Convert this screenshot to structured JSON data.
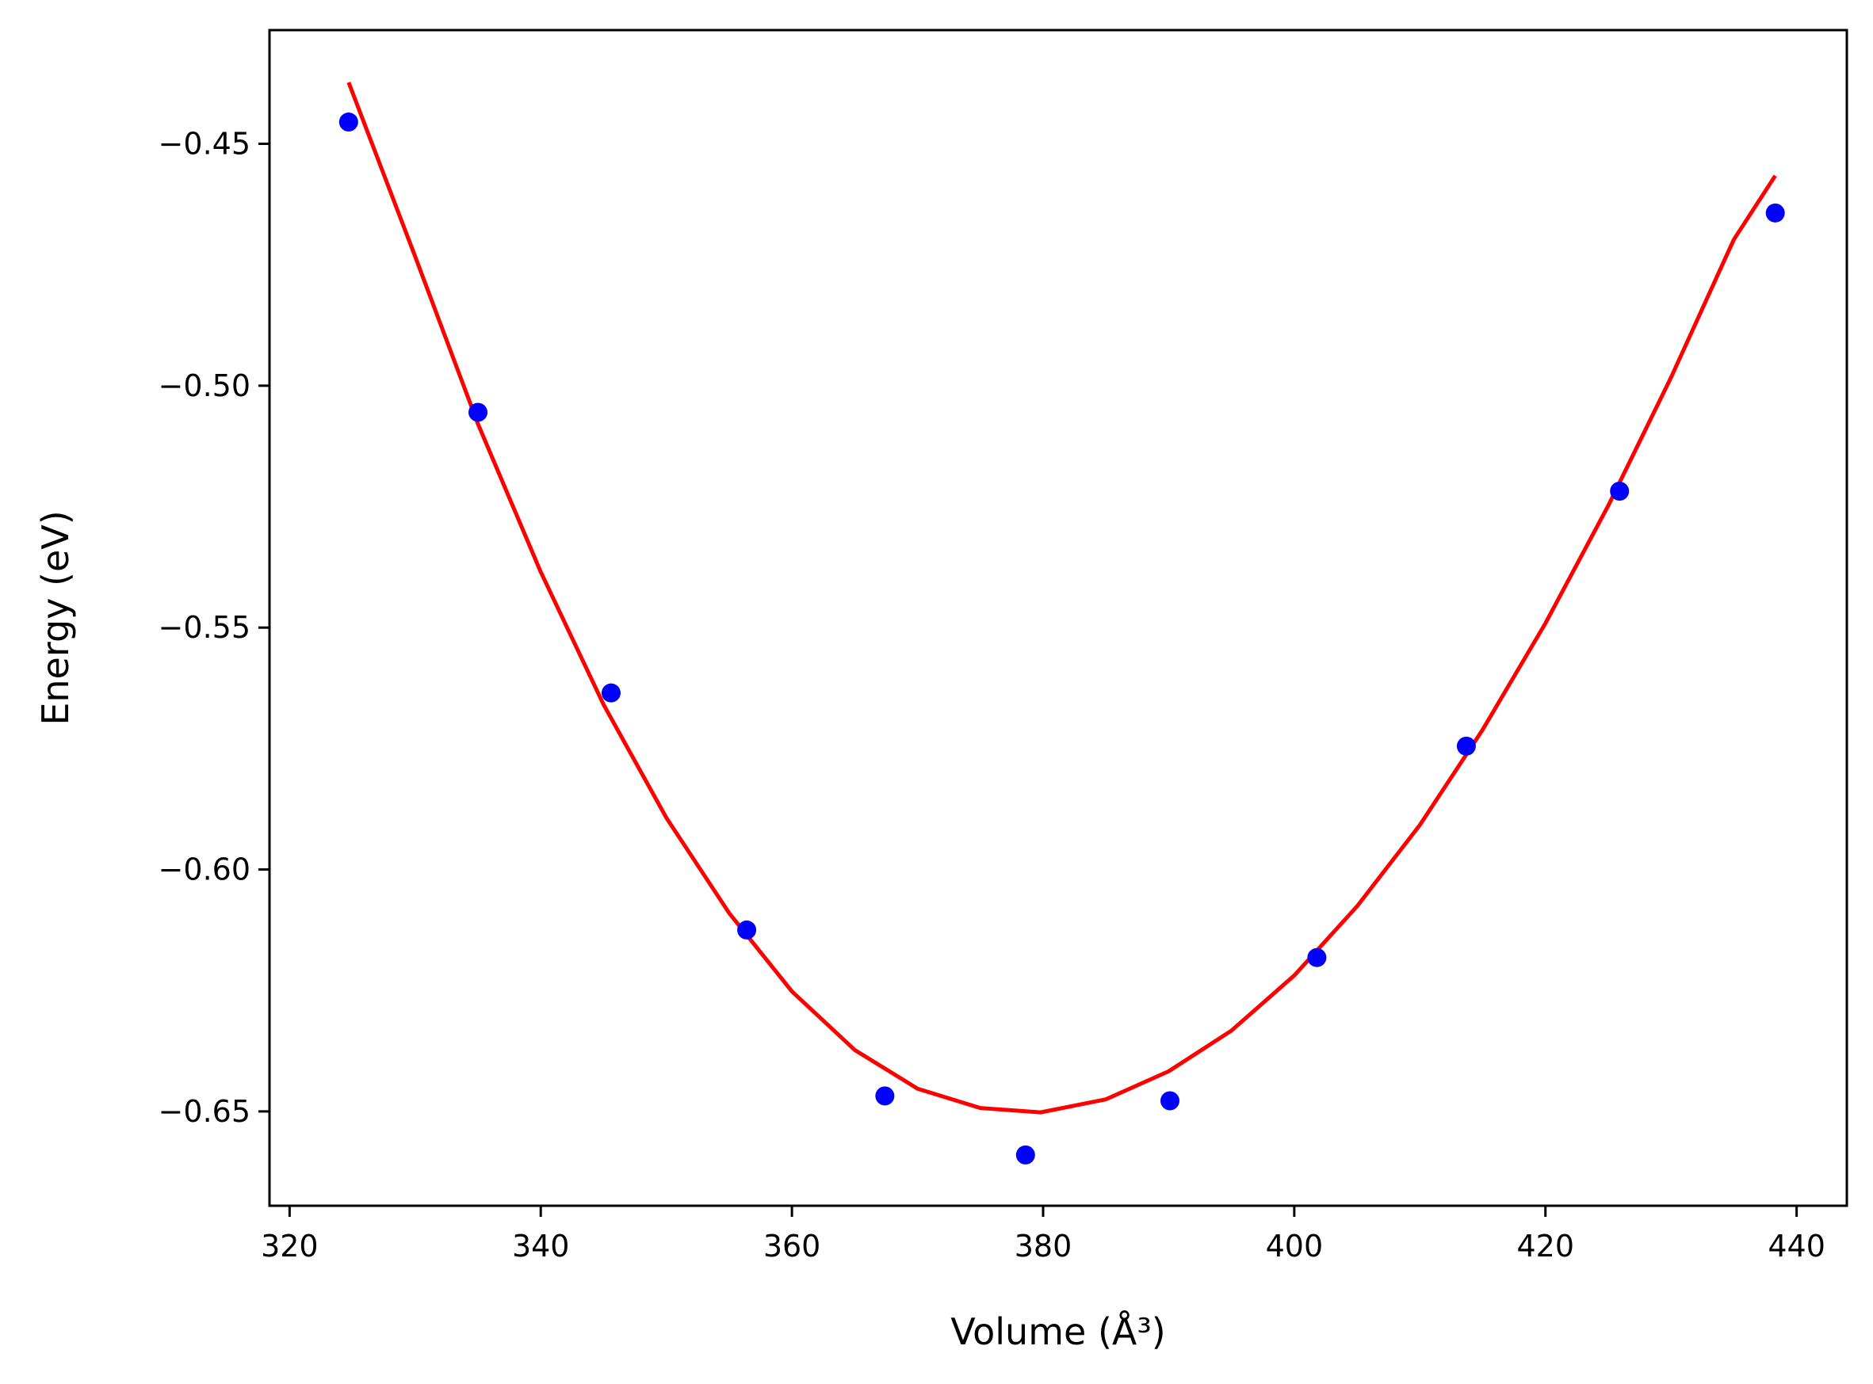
{
  "chart_data": {
    "type": "scatter",
    "title": "",
    "xlabel": "Volume (Å³)",
    "ylabel": "Energy (eV)",
    "xlim": [
      318.4,
      444.0
    ],
    "ylim": [
      -0.6695,
      -0.4265
    ],
    "x_ticks": [
      320,
      340,
      360,
      380,
      400,
      420,
      440
    ],
    "y_ticks": [
      -0.45,
      -0.5,
      -0.55,
      -0.6,
      -0.65
    ],
    "x_tick_labels": [
      "320",
      "340",
      "360",
      "380",
      "400",
      "420",
      "440"
    ],
    "y_tick_labels": [
      "−0.45",
      "−0.50",
      "−0.55",
      "−0.60",
      "−0.65"
    ],
    "grid": false,
    "series": [
      {
        "kind": "points",
        "color": "#0000ff",
        "x": [
          324.7,
          335.0,
          345.6,
          356.4,
          367.4,
          378.6,
          390.1,
          401.8,
          413.7,
          425.9,
          438.3
        ],
        "y": [
          -0.4455,
          -0.5055,
          -0.5635,
          -0.6125,
          -0.6468,
          -0.659,
          -0.6478,
          -0.6182,
          -0.5745,
          -0.5218,
          -0.4643
        ]
      },
      {
        "kind": "fit-curve",
        "color": "#ff0000",
        "x": [
          324.7,
          330.0,
          335.0,
          340.0,
          345.0,
          350.0,
          355.0,
          360.0,
          365.0,
          370.0,
          375.0,
          379.8,
          385.0,
          390.0,
          395.0,
          400.0,
          405.0,
          410.0,
          415.0,
          420.0,
          425.0,
          430.0,
          435.0,
          438.3
        ],
        "y": [
          -0.4373,
          -0.4733,
          -0.5079,
          -0.5385,
          -0.5659,
          -0.5893,
          -0.609,
          -0.6252,
          -0.6373,
          -0.6453,
          -0.6493,
          -0.6502,
          -0.6475,
          -0.6417,
          -0.6333,
          -0.6219,
          -0.6076,
          -0.5908,
          -0.5711,
          -0.5491,
          -0.5248,
          -0.4983,
          -0.4698,
          -0.4566
        ]
      }
    ]
  }
}
